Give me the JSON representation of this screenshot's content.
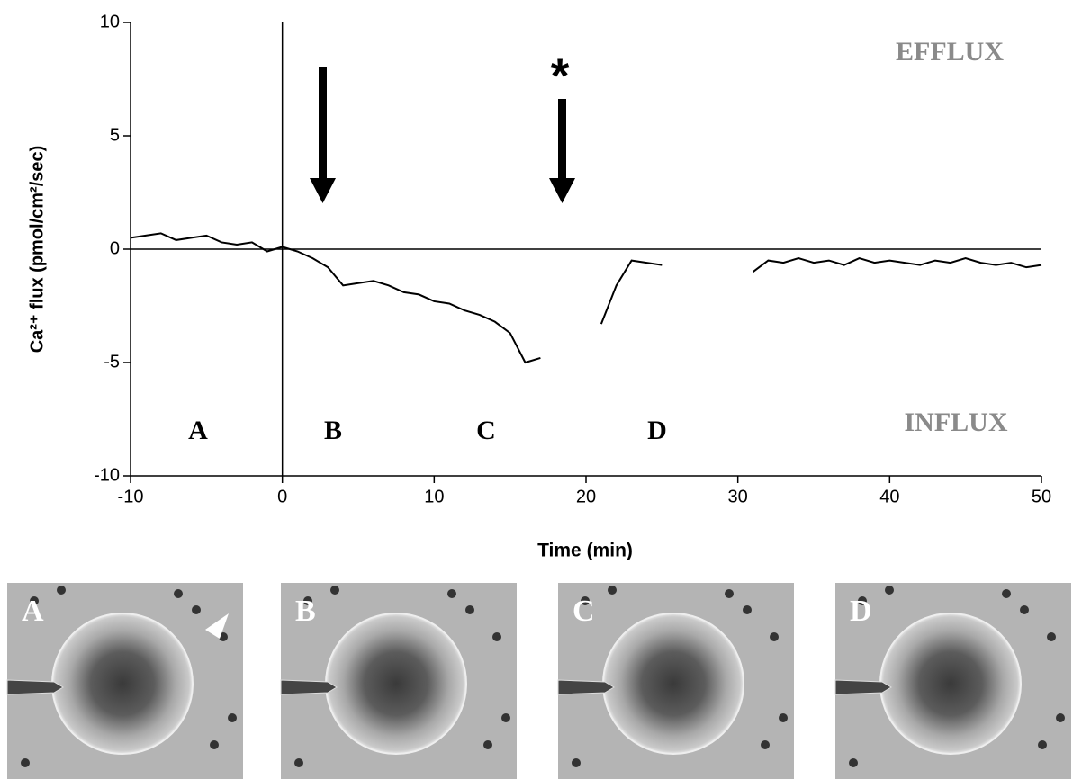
{
  "chart_data": {
    "type": "line",
    "y_label": "Ca²⁺ flux (pmol/cm²/sec)",
    "x_label": "Time (min)",
    "annotations": [
      "EFFLUX",
      "INFLUX",
      "A",
      "B",
      "C",
      "D",
      "*"
    ],
    "x": [
      -10,
      -9,
      -8,
      -7,
      -6,
      -5,
      -4,
      -3,
      -2,
      -1,
      0,
      1,
      2,
      3,
      4,
      5,
      6,
      7,
      8,
      9,
      10,
      11,
      12,
      13,
      14,
      15,
      16,
      17,
      18,
      19,
      20,
      21,
      22,
      23,
      24,
      25,
      26,
      27,
      28,
      29,
      30,
      31,
      32,
      33,
      34,
      35,
      36,
      37,
      38,
      39,
      40,
      41,
      42,
      43,
      44,
      45,
      46,
      47,
      48,
      49,
      50
    ],
    "values": [
      0.5,
      0.6,
      0.7,
      0.4,
      0.5,
      0.6,
      0.3,
      0.2,
      0.3,
      -0.1,
      0.1,
      -0.1,
      -0.4,
      -0.8,
      -1.6,
      -1.5,
      -1.4,
      -1.6,
      -1.9,
      -2.0,
      -2.3,
      -2.4,
      -2.7,
      -2.9,
      -3.2,
      -3.7,
      -5.0,
      -4.8,
      null,
      null,
      null,
      -3.3,
      -1.6,
      -0.5,
      -0.6,
      -0.7,
      null,
      null,
      null,
      null,
      null,
      -1.0,
      -0.5,
      -0.6,
      -0.4,
      -0.6,
      -0.5,
      -0.7,
      -0.4,
      -0.6,
      -0.5,
      -0.6,
      -0.7,
      -0.5,
      -0.6,
      -0.4,
      -0.6,
      -0.7,
      -0.6,
      -0.8,
      -0.7
    ],
    "color": "#000000",
    "xlim": [
      -10,
      50
    ],
    "xticks": [
      -10,
      0,
      10,
      20,
      30,
      40,
      50
    ],
    "ylim": [
      -10,
      10
    ],
    "yticks": [
      -10,
      -5,
      0,
      5,
      10
    ],
    "zero_lines": true
  },
  "panels": [
    "A",
    "B",
    "C",
    "D"
  ]
}
